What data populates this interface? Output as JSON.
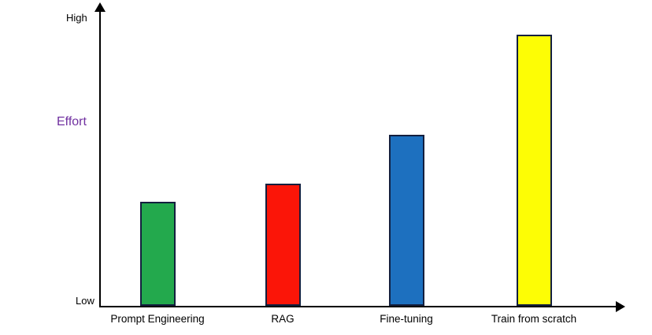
{
  "chart_data": {
    "type": "bar",
    "title": "",
    "categories": [
      "Prompt Engineering",
      "RAG",
      "Fine-tuning",
      "Train from scratch"
    ],
    "values": [
      35,
      41,
      57.5,
      91
    ],
    "ylabel": "Effort",
    "ylabel_color": "#7030a0",
    "y_top_label": "High",
    "y_bottom_label": "Low",
    "ylim": [
      0,
      100
    ],
    "xlabel": "",
    "grid": false,
    "legend": false,
    "bar_colors": [
      "#23a94d",
      "#fb1508",
      "#1d70bf",
      "#fdfd05"
    ],
    "bar_border_color": "#131f3e",
    "axis_color": "#000000",
    "background": "#ffffff"
  }
}
